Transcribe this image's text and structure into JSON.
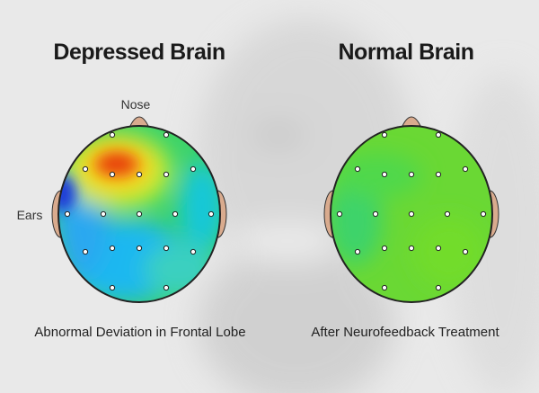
{
  "panels": [
    {
      "title": "Depressed Brain",
      "caption": "Abnormal Deviation in Frontal Lobe"
    },
    {
      "title": "Normal Brain",
      "caption": "After Neurofeedback Treatment"
    }
  ],
  "labels": {
    "nose": "Nose",
    "ears": "Ears"
  }
}
